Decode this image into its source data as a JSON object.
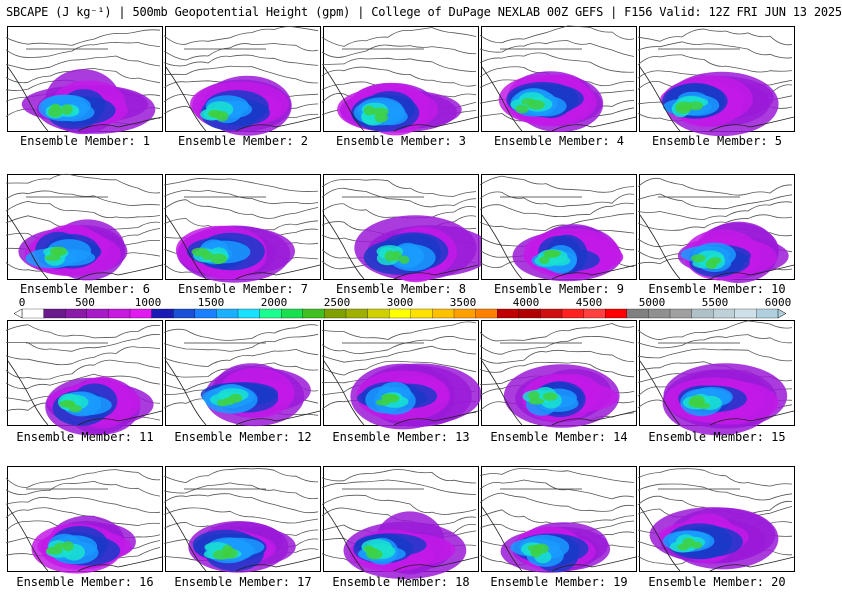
{
  "header": {
    "title": "SBCAPE (J kg⁻¹) | 500mb Geopotential Height (gpm) | College of DuPage NEXLAB 00Z GEFS | F156 Valid: 12Z FRI JUN 13 2025"
  },
  "legend": {
    "labels": [
      "0",
      "500",
      "1000",
      "1500",
      "2000",
      "2500",
      "3000",
      "3500",
      "4000",
      "4500",
      "5000",
      "5500",
      "6000"
    ],
    "colors": [
      "#ffffff",
      "#6a1a8a",
      "#8a1aa8",
      "#a81ac8",
      "#c81ae0",
      "#e01af0",
      "#1a1ab4",
      "#1a50d8",
      "#1a80ff",
      "#1ab0ff",
      "#1ae0ff",
      "#1aff90",
      "#1ae050",
      "#40c020",
      "#80a000",
      "#a0b000",
      "#d0d000",
      "#ffff00",
      "#ffe000",
      "#ffc000",
      "#ffa000",
      "#ff8000",
      "#c00000",
      "#b00000",
      "#d01010",
      "#ff2020",
      "#ff4040",
      "#ff0000",
      "#808080",
      "#909090",
      "#a0a0a0",
      "#b0c0c8",
      "#c0d0d8",
      "#d0e0e8",
      "#b0d0e0"
    ]
  },
  "panels": [
    {
      "label": "Ensemble Member: 1"
    },
    {
      "label": "Ensemble Member: 2"
    },
    {
      "label": "Ensemble Member: 3"
    },
    {
      "label": "Ensemble Member: 4"
    },
    {
      "label": "Ensemble Member: 5"
    },
    {
      "label": "Ensemble Member: 6"
    },
    {
      "label": "Ensemble Member: 7"
    },
    {
      "label": "Ensemble Member: 8"
    },
    {
      "label": "Ensemble Member: 9"
    },
    {
      "label": "Ensemble Member: 10"
    },
    {
      "label": "Ensemble Member: 11"
    },
    {
      "label": "Ensemble Member: 12"
    },
    {
      "label": "Ensemble Member: 13"
    },
    {
      "label": "Ensemble Member: 14"
    },
    {
      "label": "Ensemble Member: 15"
    },
    {
      "label": "Ensemble Member: 16"
    },
    {
      "label": "Ensemble Member: 17"
    },
    {
      "label": "Ensemble Member: 18"
    },
    {
      "label": "Ensemble Member: 19"
    },
    {
      "label": "Ensemble Member: 20"
    }
  ]
}
